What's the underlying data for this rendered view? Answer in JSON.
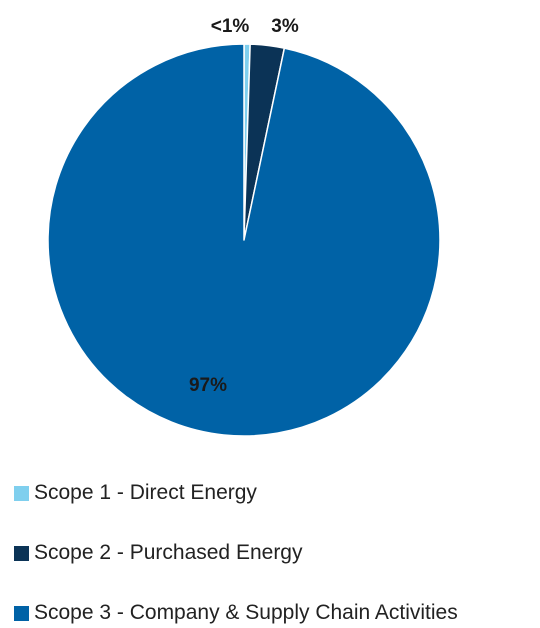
{
  "chart_data": {
    "type": "pie",
    "start_angle_deg": 0,
    "direction": "clockwise",
    "slices": [
      {
        "label": "Scope 1 - Direct Energy",
        "value": 0.5,
        "display": "<1%",
        "color": "#7fcfee"
      },
      {
        "label": "Scope 2 - Purchased Energy",
        "value": 2.8,
        "display": "3%",
        "color": "#0b3356"
      },
      {
        "label": "Scope 3 - Company & Supply Chain Activities",
        "value": 96.7,
        "display": "97%",
        "color": "#0062a6"
      }
    ],
    "legend_position": "bottom-left"
  }
}
